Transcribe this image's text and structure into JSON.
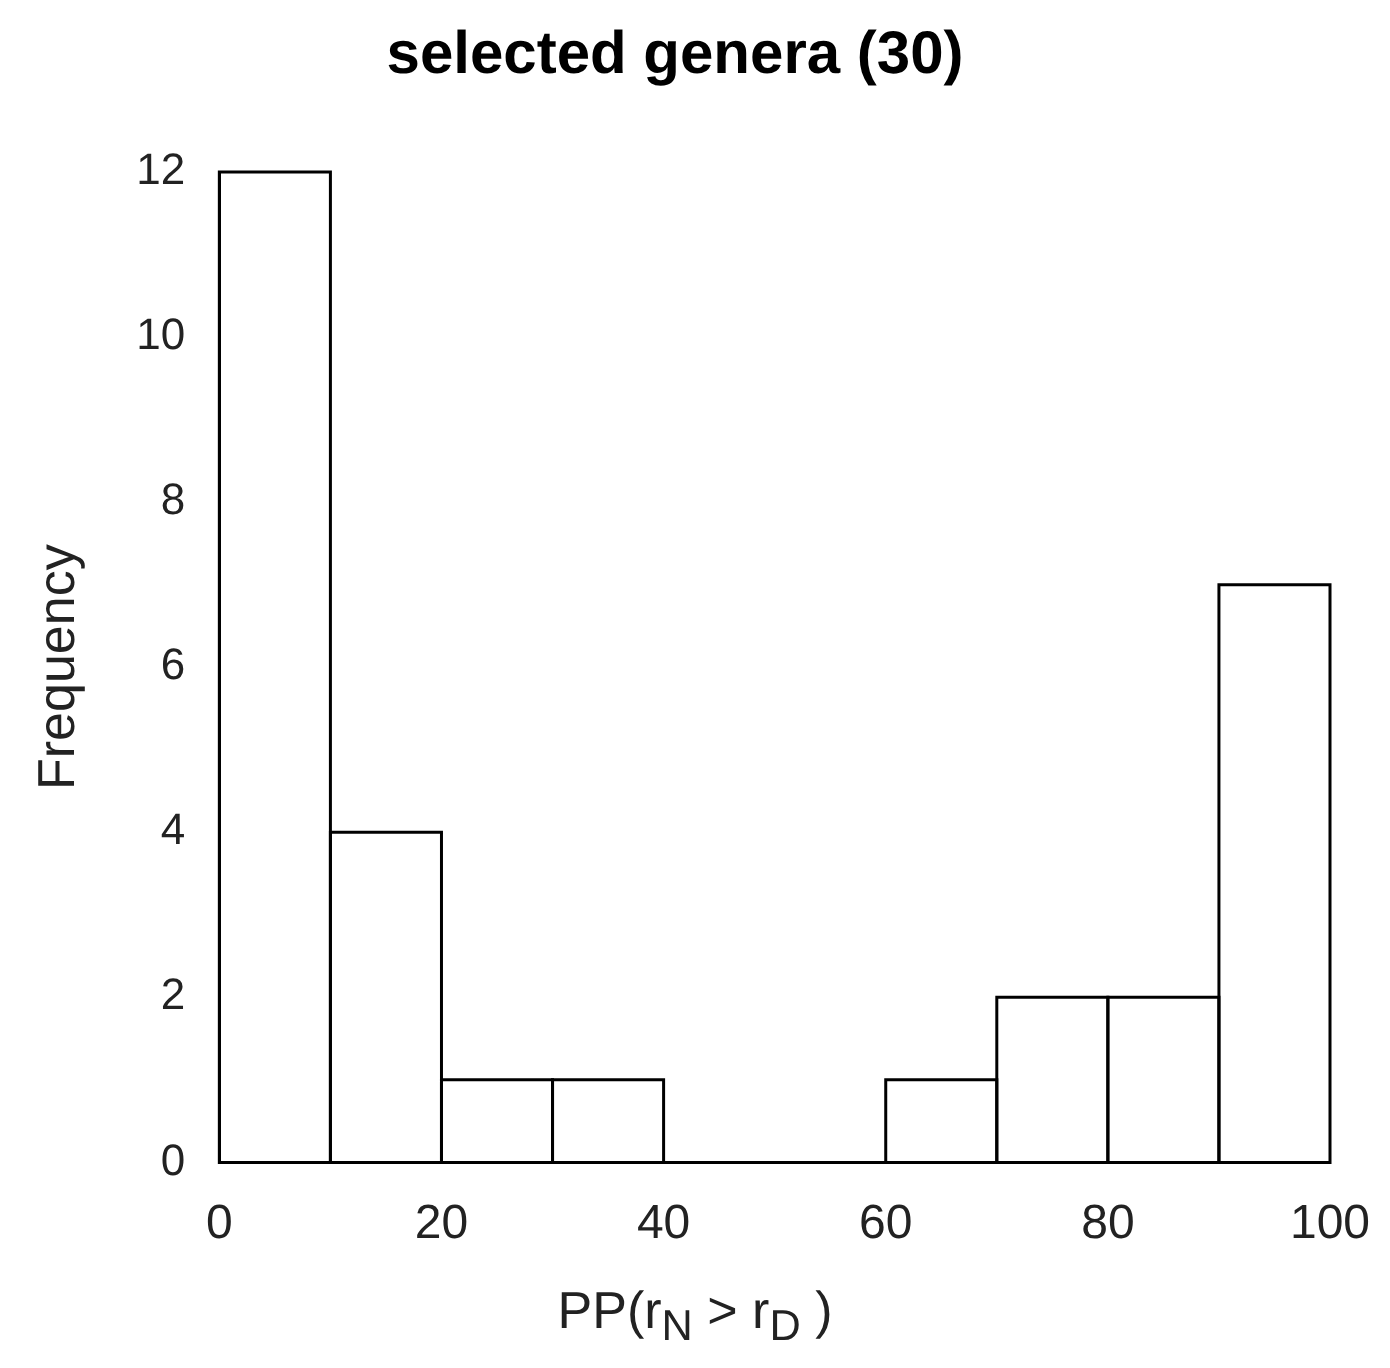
{
  "chart_data": {
    "type": "histogram",
    "title": "selected genera (30)",
    "xlabel": "PP(r$_{N}$ > r$_{D}$ )",
    "ylabel": "Frequency",
    "bins": [
      0,
      10,
      20,
      30,
      40,
      50,
      60,
      70,
      80,
      90,
      100
    ],
    "values": [
      12,
      4,
      1,
      1,
      0,
      0,
      1,
      2,
      2,
      7
    ],
    "color": "#000000",
    "xlim": [
      0,
      100
    ],
    "xticks": [
      0,
      20,
      40,
      60,
      80,
      100
    ],
    "ylim": [
      0,
      12
    ],
    "yticks": [
      0,
      2,
      4,
      6,
      8,
      10,
      12
    ],
    "grid": false,
    "legend": false
  }
}
